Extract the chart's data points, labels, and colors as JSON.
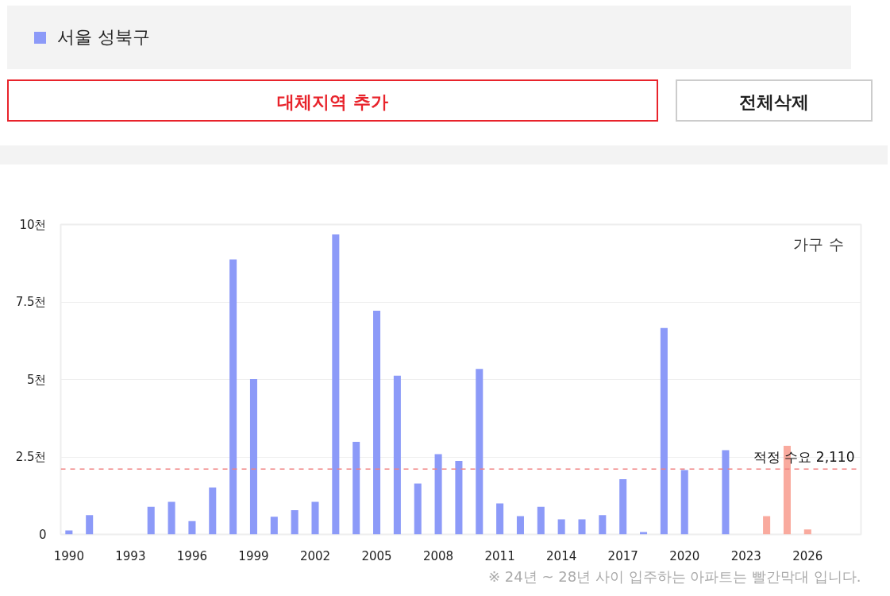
{
  "chart_data": {
    "type": "bar",
    "x": [
      1990,
      1991,
      1992,
      1993,
      1994,
      1995,
      1996,
      1997,
      1998,
      1999,
      2000,
      2001,
      2002,
      2003,
      2004,
      2005,
      2006,
      2007,
      2008,
      2009,
      2010,
      2011,
      2012,
      2013,
      2014,
      2015,
      2016,
      2017,
      2018,
      2019,
      2020,
      2021,
      2022,
      2023,
      2024,
      2025,
      2026
    ],
    "series": [
      {
        "name": "서울 성북구",
        "color": "#8c9af8",
        "values": [
          0.13,
          0.62,
          0,
          0,
          0.89,
          1.05,
          0.43,
          1.51,
          8.87,
          5.01,
          0.57,
          0.78,
          1.05,
          9.68,
          2.99,
          7.22,
          5.12,
          1.64,
          2.59,
          2.37,
          5.34,
          1.0,
          0.59,
          0.89,
          0.49,
          0.49,
          0.62,
          1.78,
          0.08,
          6.66,
          2.08,
          0,
          2.72,
          0,
          0.59,
          2.86,
          0.16
        ],
        "colors": [
          "#8c9af8",
          "#8c9af8",
          "#8c9af8",
          "#8c9af8",
          "#8c9af8",
          "#8c9af8",
          "#8c9af8",
          "#8c9af8",
          "#8c9af8",
          "#8c9af8",
          "#8c9af8",
          "#8c9af8",
          "#8c9af8",
          "#8c9af8",
          "#8c9af8",
          "#8c9af8",
          "#8c9af8",
          "#8c9af8",
          "#8c9af8",
          "#8c9af8",
          "#8c9af8",
          "#8c9af8",
          "#8c9af8",
          "#8c9af8",
          "#8c9af8",
          "#8c9af8",
          "#8c9af8",
          "#8c9af8",
          "#8c9af8",
          "#8c9af8",
          "#8c9af8",
          "#8c9af8",
          "#8c9af8",
          "#8c9af8",
          "#f9aa9e",
          "#f9aa9e",
          "#f9aa9e"
        ]
      }
    ],
    "xlim": [
      1989.6,
      2028.6
    ],
    "xticks": [
      1990,
      1993,
      1996,
      1999,
      2002,
      2005,
      2008,
      2011,
      2014,
      2017,
      2020,
      2023,
      2026
    ],
    "ylim": [
      0,
      10
    ],
    "yticks": [
      0,
      {
        "value": 2.5,
        "label": "2.5천"
      },
      {
        "value": 5,
        "label": "5천"
      },
      {
        "value": 7.5,
        "label": "7.5천"
      },
      {
        "value": 10,
        "label": "10천"
      }
    ],
    "ylabel": "가구 수",
    "ref_lines": [
      {
        "axis": "y",
        "value": 2.11,
        "label": "적정 수요 2,110",
        "color": "#f08080",
        "line_style": "dashed"
      }
    ],
    "annotations": [
      "대체지역 추가",
      "전체삭제",
      "※ 24년 ~ 28년 사이 입주하는 아파트는 빨간막대 입니다."
    ],
    "grid": "y",
    "legend": "top"
  }
}
